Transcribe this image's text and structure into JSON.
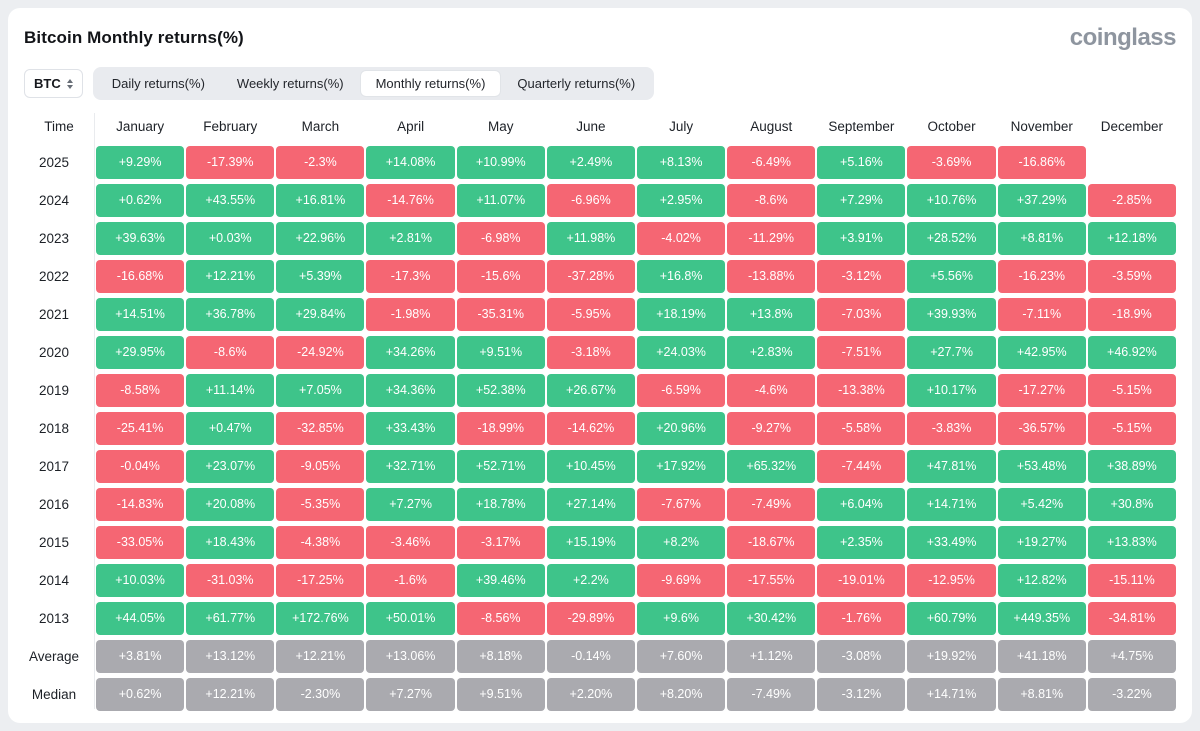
{
  "page": {
    "title": "Bitcoin Monthly returns(%)",
    "brand": "coinglass"
  },
  "controls": {
    "symbol_select": {
      "value": "BTC"
    },
    "tabs": [
      {
        "label": "Daily returns(%)",
        "active": false
      },
      {
        "label": "Weekly returns(%)",
        "active": false
      },
      {
        "label": "Monthly returns(%)",
        "active": true
      },
      {
        "label": "Quarterly returns(%)",
        "active": false
      }
    ]
  },
  "colors": {
    "positive": "#3EC48A",
    "negative": "#F56673",
    "neutral": "#AAAAAF"
  },
  "chart_data": {
    "type": "heatmap",
    "title": "Bitcoin Monthly returns(%)",
    "row_header": "Time",
    "columns": [
      "January",
      "February",
      "March",
      "April",
      "May",
      "June",
      "July",
      "August",
      "September",
      "October",
      "November",
      "December"
    ],
    "rows": [
      {
        "label": "2025",
        "values": [
          "+9.29%",
          "-17.39%",
          "-2.3%",
          "+14.08%",
          "+10.99%",
          "+2.49%",
          "+8.13%",
          "-6.49%",
          "+5.16%",
          "-3.69%",
          "-16.86%",
          null
        ]
      },
      {
        "label": "2024",
        "values": [
          "+0.62%",
          "+43.55%",
          "+16.81%",
          "-14.76%",
          "+11.07%",
          "-6.96%",
          "+2.95%",
          "-8.6%",
          "+7.29%",
          "+10.76%",
          "+37.29%",
          "-2.85%"
        ]
      },
      {
        "label": "2023",
        "values": [
          "+39.63%",
          "+0.03%",
          "+22.96%",
          "+2.81%",
          "-6.98%",
          "+11.98%",
          "-4.02%",
          "-11.29%",
          "+3.91%",
          "+28.52%",
          "+8.81%",
          "+12.18%"
        ]
      },
      {
        "label": "2022",
        "values": [
          "-16.68%",
          "+12.21%",
          "+5.39%",
          "-17.3%",
          "-15.6%",
          "-37.28%",
          "+16.8%",
          "-13.88%",
          "-3.12%",
          "+5.56%",
          "-16.23%",
          "-3.59%"
        ]
      },
      {
        "label": "2021",
        "values": [
          "+14.51%",
          "+36.78%",
          "+29.84%",
          "-1.98%",
          "-35.31%",
          "-5.95%",
          "+18.19%",
          "+13.8%",
          "-7.03%",
          "+39.93%",
          "-7.11%",
          "-18.9%"
        ]
      },
      {
        "label": "2020",
        "values": [
          "+29.95%",
          "-8.6%",
          "-24.92%",
          "+34.26%",
          "+9.51%",
          "-3.18%",
          "+24.03%",
          "+2.83%",
          "-7.51%",
          "+27.7%",
          "+42.95%",
          "+46.92%"
        ]
      },
      {
        "label": "2019",
        "values": [
          "-8.58%",
          "+11.14%",
          "+7.05%",
          "+34.36%",
          "+52.38%",
          "+26.67%",
          "-6.59%",
          "-4.6%",
          "-13.38%",
          "+10.17%",
          "-17.27%",
          "-5.15%"
        ]
      },
      {
        "label": "2018",
        "values": [
          "-25.41%",
          "+0.47%",
          "-32.85%",
          "+33.43%",
          "-18.99%",
          "-14.62%",
          "+20.96%",
          "-9.27%",
          "-5.58%",
          "-3.83%",
          "-36.57%",
          "-5.15%"
        ]
      },
      {
        "label": "2017",
        "values": [
          "-0.04%",
          "+23.07%",
          "-9.05%",
          "+32.71%",
          "+52.71%",
          "+10.45%",
          "+17.92%",
          "+65.32%",
          "-7.44%",
          "+47.81%",
          "+53.48%",
          "+38.89%"
        ]
      },
      {
        "label": "2016",
        "values": [
          "-14.83%",
          "+20.08%",
          "-5.35%",
          "+7.27%",
          "+18.78%",
          "+27.14%",
          "-7.67%",
          "-7.49%",
          "+6.04%",
          "+14.71%",
          "+5.42%",
          "+30.8%"
        ]
      },
      {
        "label": "2015",
        "values": [
          "-33.05%",
          "+18.43%",
          "-4.38%",
          "-3.46%",
          "-3.17%",
          "+15.19%",
          "+8.2%",
          "-18.67%",
          "+2.35%",
          "+33.49%",
          "+19.27%",
          "+13.83%"
        ]
      },
      {
        "label": "2014",
        "values": [
          "+10.03%",
          "-31.03%",
          "-17.25%",
          "-1.6%",
          "+39.46%",
          "+2.2%",
          "-9.69%",
          "-17.55%",
          "-19.01%",
          "-12.95%",
          "+12.82%",
          "-15.11%"
        ]
      },
      {
        "label": "2013",
        "values": [
          "+44.05%",
          "+61.77%",
          "+172.76%",
          "+50.01%",
          "-8.56%",
          "-29.89%",
          "+9.6%",
          "+30.42%",
          "-1.76%",
          "+60.79%",
          "+449.35%",
          "-34.81%"
        ]
      },
      {
        "label": "Average",
        "neutral": true,
        "values": [
          "+3.81%",
          "+13.12%",
          "+12.21%",
          "+13.06%",
          "+8.18%",
          "-0.14%",
          "+7.60%",
          "+1.12%",
          "-3.08%",
          "+19.92%",
          "+41.18%",
          "+4.75%"
        ]
      },
      {
        "label": "Median",
        "neutral": true,
        "values": [
          "+0.62%",
          "+12.21%",
          "-2.30%",
          "+7.27%",
          "+9.51%",
          "+2.20%",
          "+8.20%",
          "-7.49%",
          "-3.12%",
          "+14.71%",
          "+8.81%",
          "-3.22%"
        ]
      }
    ]
  }
}
